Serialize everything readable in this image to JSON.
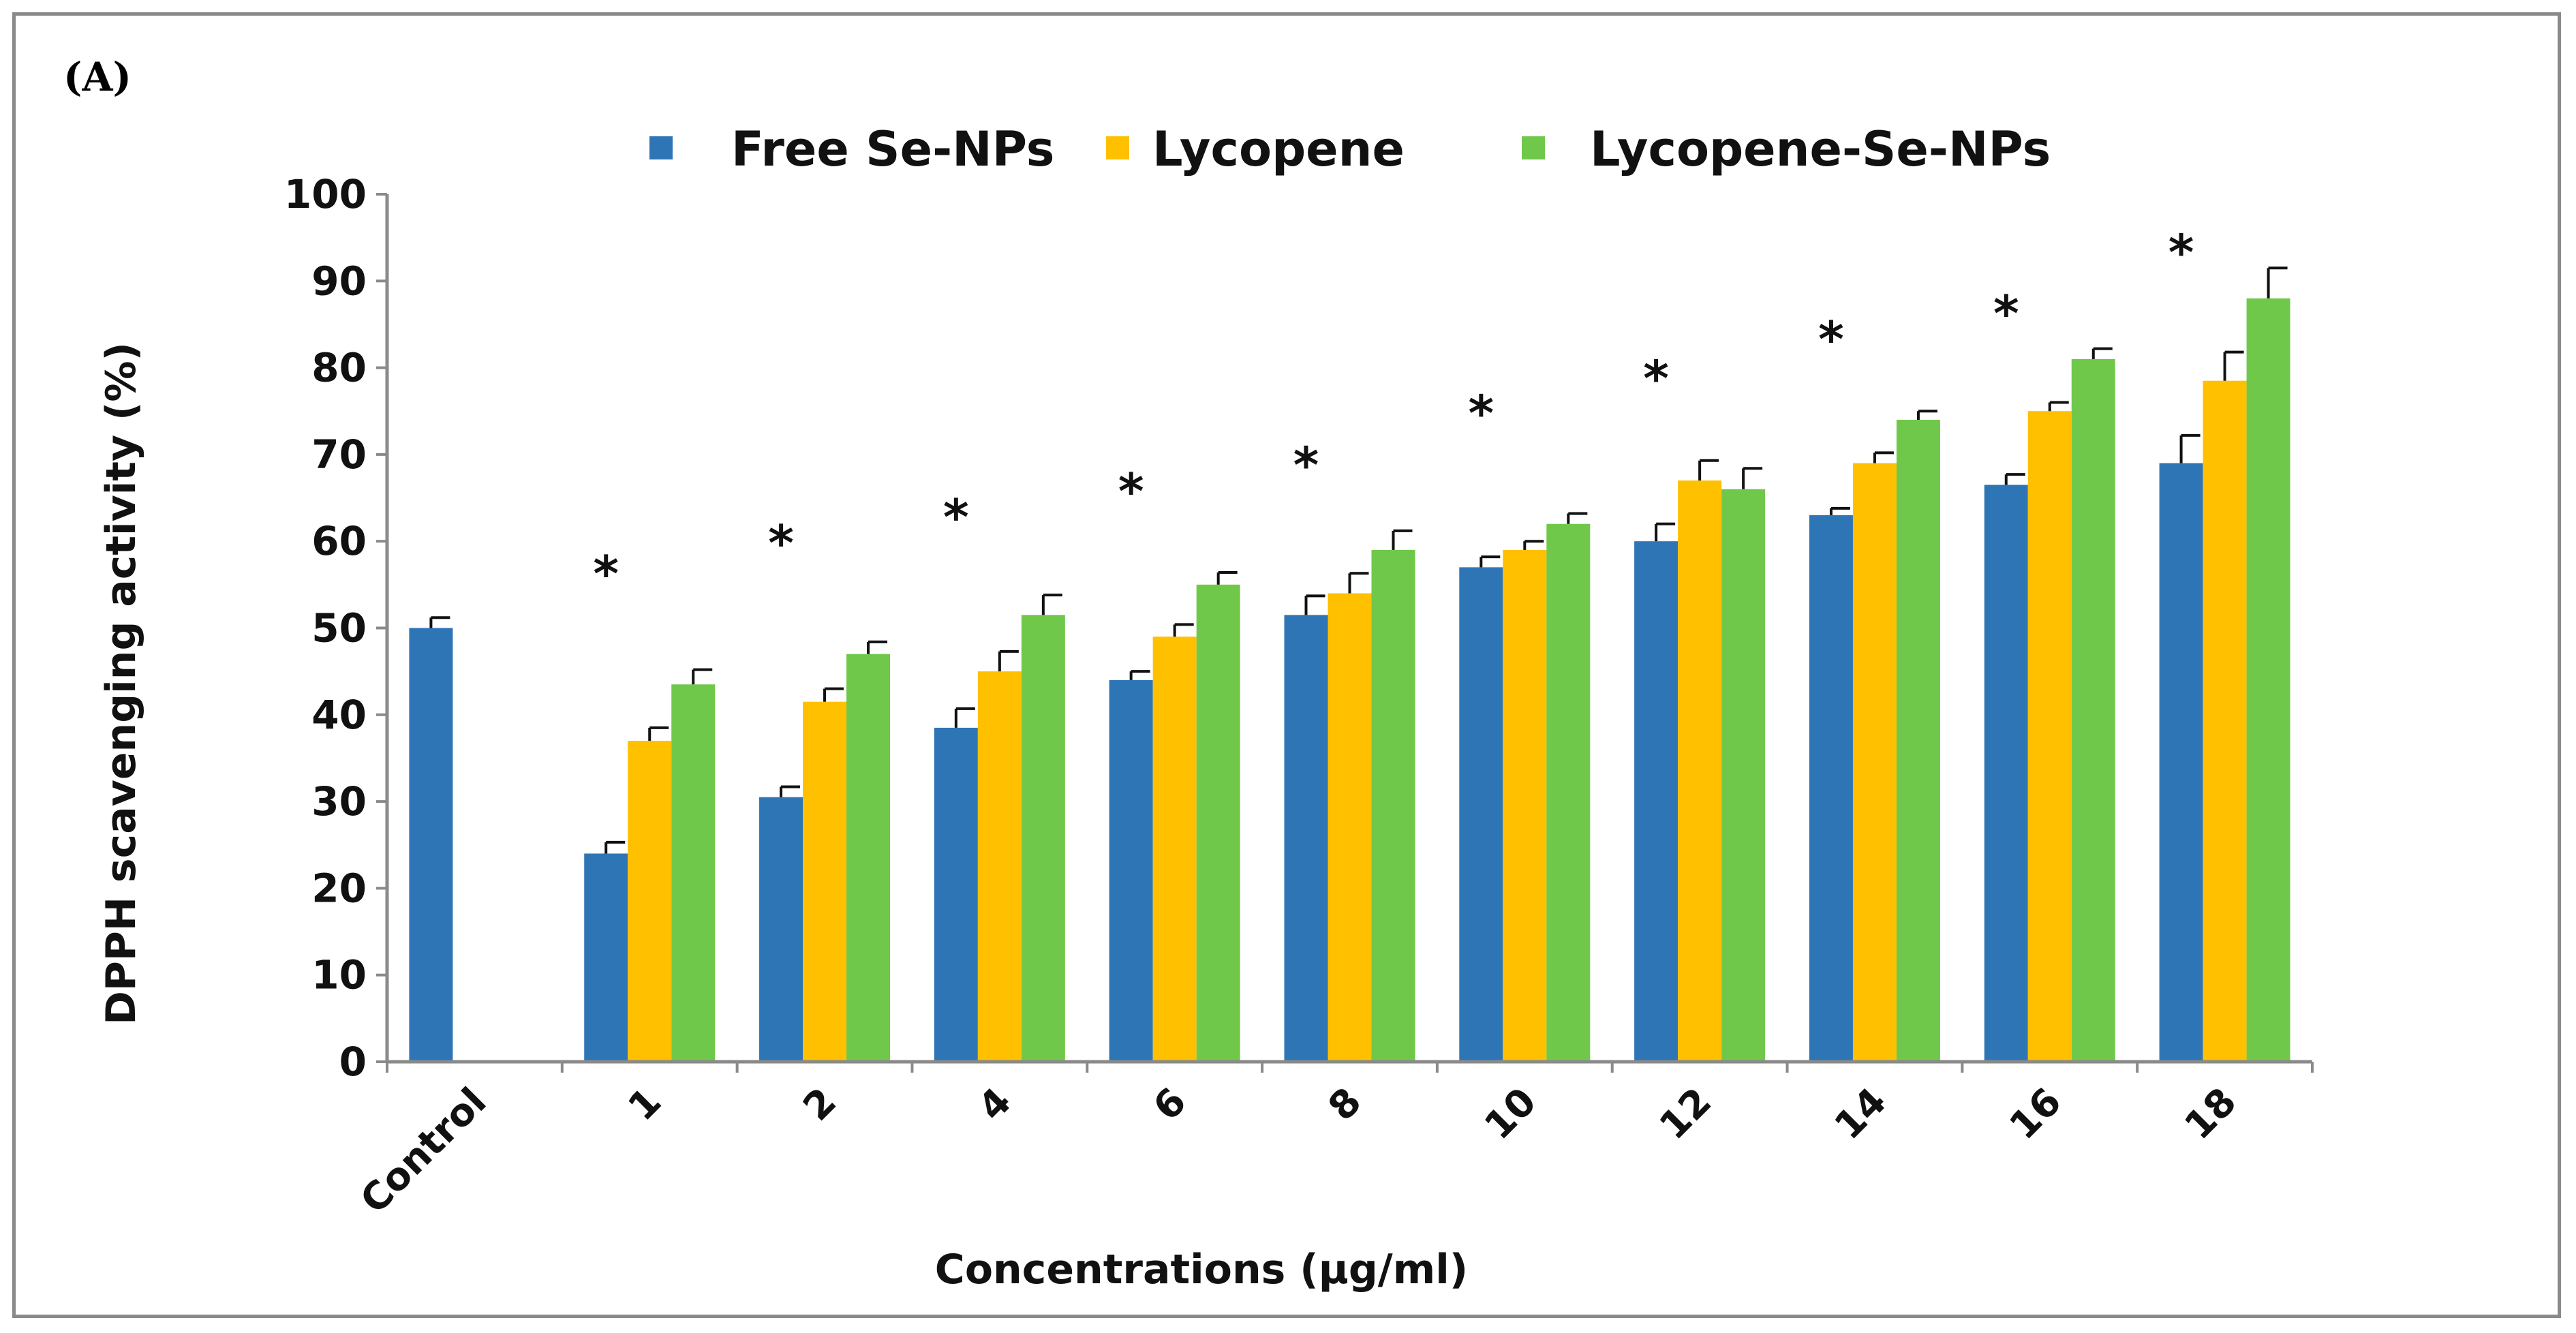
{
  "chart_data": {
    "type": "bar",
    "panel_label": "(A)",
    "title": "",
    "xlabel": "Concentrations (µg/ml)",
    "ylabel": "DPPH scavenging activity (%)",
    "ylim": [
      0,
      100
    ],
    "yticks": [
      "0",
      "10",
      "20",
      "30",
      "40",
      "50",
      "60",
      "70",
      "80",
      "90",
      "100"
    ],
    "categories": [
      "Control",
      "1",
      "2",
      "4",
      "6",
      "8",
      "10",
      "12",
      "14",
      "16",
      "18"
    ],
    "legend_position": "top",
    "grid": false,
    "series": [
      {
        "name": "Free Se-NPs",
        "color": "#2e75b6",
        "values": [
          50,
          24,
          30.5,
          38.5,
          44,
          51.5,
          57,
          60,
          63,
          66.5,
          69
        ],
        "errors": [
          1.2,
          1.3,
          1.2,
          2.2,
          1.0,
          2.2,
          1.2,
          2.0,
          0.8,
          1.2,
          3.2
        ]
      },
      {
        "name": "Lycopene",
        "color": "#ffc000",
        "values": [
          null,
          37,
          41.5,
          45,
          49,
          54,
          59,
          67,
          69,
          75,
          78.5
        ],
        "errors": [
          null,
          1.5,
          1.5,
          2.3,
          1.4,
          2.3,
          1.0,
          2.3,
          1.2,
          1.0,
          3.3
        ]
      },
      {
        "name": "Lycopene-Se-NPs",
        "color": "#70c84a",
        "values": [
          null,
          43.5,
          47,
          51.5,
          55,
          59,
          62,
          66,
          74,
          81,
          88
        ],
        "errors": [
          null,
          1.7,
          1.4,
          2.3,
          1.4,
          2.2,
          1.2,
          2.4,
          1.0,
          1.2,
          3.5
        ]
      }
    ],
    "annotations": [
      {
        "text": "*",
        "category": "1",
        "y": 56.5
      },
      {
        "text": "*",
        "category": "2",
        "y": 60
      },
      {
        "text": "*",
        "category": "4",
        "y": 63
      },
      {
        "text": "*",
        "category": "6",
        "y": 66
      },
      {
        "text": "*",
        "category": "8",
        "y": 69
      },
      {
        "text": "*",
        "category": "10",
        "y": 75
      },
      {
        "text": "*",
        "category": "12",
        "y": 79
      },
      {
        "text": "*",
        "category": "14",
        "y": 83.5
      },
      {
        "text": "*",
        "category": "16",
        "y": 86.5
      },
      {
        "text": "*",
        "category": "18",
        "y": 93.5
      }
    ]
  }
}
